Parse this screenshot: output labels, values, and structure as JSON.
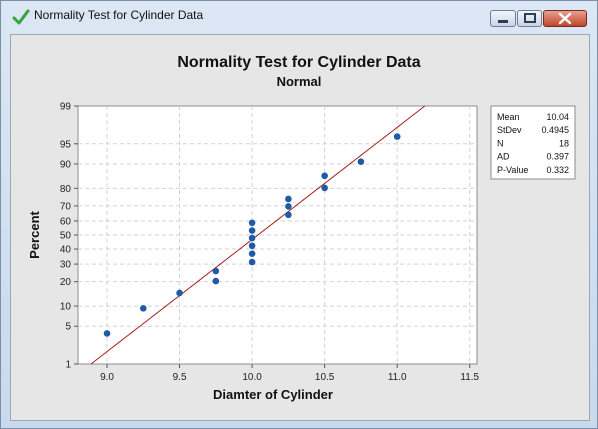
{
  "window": {
    "title": "Normality Test for Cylinder Data",
    "icon": "checkmark-icon",
    "controls": [
      "minimize-icon",
      "maximize-icon",
      "close-icon"
    ]
  },
  "chart_data": {
    "type": "scatter",
    "title": "Normality Test for Cylinder Data",
    "subtitle": "Normal",
    "xlabel": "Diamter of Cylinder",
    "ylabel": "Percent",
    "xlim": [
      8.8,
      11.55
    ],
    "x_ticks": [
      "9.0",
      "9.5",
      "10.0",
      "10.5",
      "11.0",
      "11.5"
    ],
    "y_scale": "normal-probability",
    "y_ticks": [
      "1",
      "5",
      "10",
      "20",
      "30",
      "40",
      "50",
      "60",
      "70",
      "80",
      "90",
      "95",
      "99"
    ],
    "grid": true,
    "points": [
      {
        "x": 9.0,
        "y": 3.8
      },
      {
        "x": 9.25,
        "y": 9.3
      },
      {
        "x": 9.5,
        "y": 14.8
      },
      {
        "x": 9.75,
        "y": 20.3
      },
      {
        "x": 9.75,
        "y": 25.8
      },
      {
        "x": 10.0,
        "y": 31.3
      },
      {
        "x": 10.0,
        "y": 36.8
      },
      {
        "x": 10.0,
        "y": 42.3
      },
      {
        "x": 10.0,
        "y": 47.8
      },
      {
        "x": 10.0,
        "y": 53.2
      },
      {
        "x": 10.0,
        "y": 58.7
      },
      {
        "x": 10.25,
        "y": 64.2
      },
      {
        "x": 10.25,
        "y": 69.7
      },
      {
        "x": 10.25,
        "y": 74.2
      },
      {
        "x": 10.5,
        "y": 80.2
      },
      {
        "x": 10.5,
        "y": 85.7
      },
      {
        "x": 10.75,
        "y": 90.7
      },
      {
        "x": 11.0,
        "y": 96.2
      }
    ],
    "fit_line": {
      "mean": 10.04,
      "stdev": 0.4945,
      "color": "#a3201f"
    },
    "point_color": "#1f5aa6",
    "stats": [
      {
        "label": "Mean",
        "value": "10.04"
      },
      {
        "label": "StDev",
        "value": "0.4945"
      },
      {
        "label": "N",
        "value": "18"
      },
      {
        "label": "AD",
        "value": "0.397"
      },
      {
        "label": "P-Value",
        "value": "0.332"
      }
    ],
    "stats_placement": "right"
  }
}
